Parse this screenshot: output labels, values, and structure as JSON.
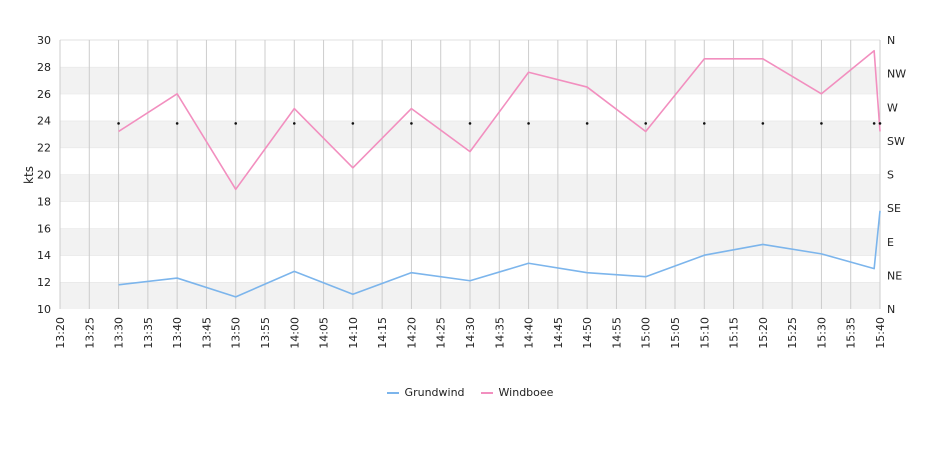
{
  "chart_data": {
    "type": "line",
    "ylabel": "kts",
    "ylim": [
      10,
      30
    ],
    "y_ticks": [
      "10",
      "12",
      "14",
      "16",
      "18",
      "20",
      "22",
      "24",
      "26",
      "28",
      "30"
    ],
    "y2_ticks": [
      "N",
      "NE",
      "E",
      "SE",
      "S",
      "SW",
      "W",
      "NW",
      "N"
    ],
    "x_ticks": [
      "13:20",
      "13:25",
      "13:30",
      "13:35",
      "13:40",
      "13:45",
      "13:50",
      "13:55",
      "14:00",
      "14:05",
      "14:10",
      "14:15",
      "14:20",
      "14:25",
      "14:30",
      "14:35",
      "14:40",
      "14:45",
      "14:50",
      "14:55",
      "15:00",
      "15:05",
      "15:10",
      "15:15",
      "15:20",
      "15:25",
      "15:30",
      "15:35",
      "15:40"
    ],
    "x": [
      "13:30",
      "13:40",
      "13:50",
      "14:00",
      "14:10",
      "14:20",
      "14:30",
      "14:40",
      "14:50",
      "15:00",
      "15:10",
      "15:20",
      "15:30",
      "15:39",
      "15:40"
    ],
    "series": [
      {
        "name": "Grundwind",
        "color": "#7cb5ec",
        "values": [
          11.8,
          12.3,
          10.9,
          12.8,
          11.1,
          12.7,
          12.1,
          13.4,
          12.7,
          12.4,
          14.0,
          14.8,
          14.1,
          13.0,
          17.3
        ]
      },
      {
        "name": "Windboee",
        "color": "#f28fbf",
        "values": [
          23.2,
          26.0,
          18.9,
          24.9,
          20.5,
          24.9,
          21.7,
          27.6,
          26.5,
          23.2,
          28.6,
          28.6,
          26.0,
          29.2,
          23.2
        ]
      }
    ],
    "direction_x": [
      "13:30",
      "13:40",
      "13:50",
      "14:00",
      "14:10",
      "14:20",
      "14:30",
      "14:40",
      "14:50",
      "15:00",
      "15:10",
      "15:20",
      "15:30",
      "15:39",
      "15:40"
    ],
    "direction_y": [
      23.8,
      23.8,
      23.8,
      23.8,
      23.8,
      23.8,
      23.8,
      23.8,
      23.8,
      23.8,
      23.8,
      23.8,
      23.8,
      23.8,
      23.8
    ],
    "grid": true,
    "legend_position": "bottom"
  }
}
